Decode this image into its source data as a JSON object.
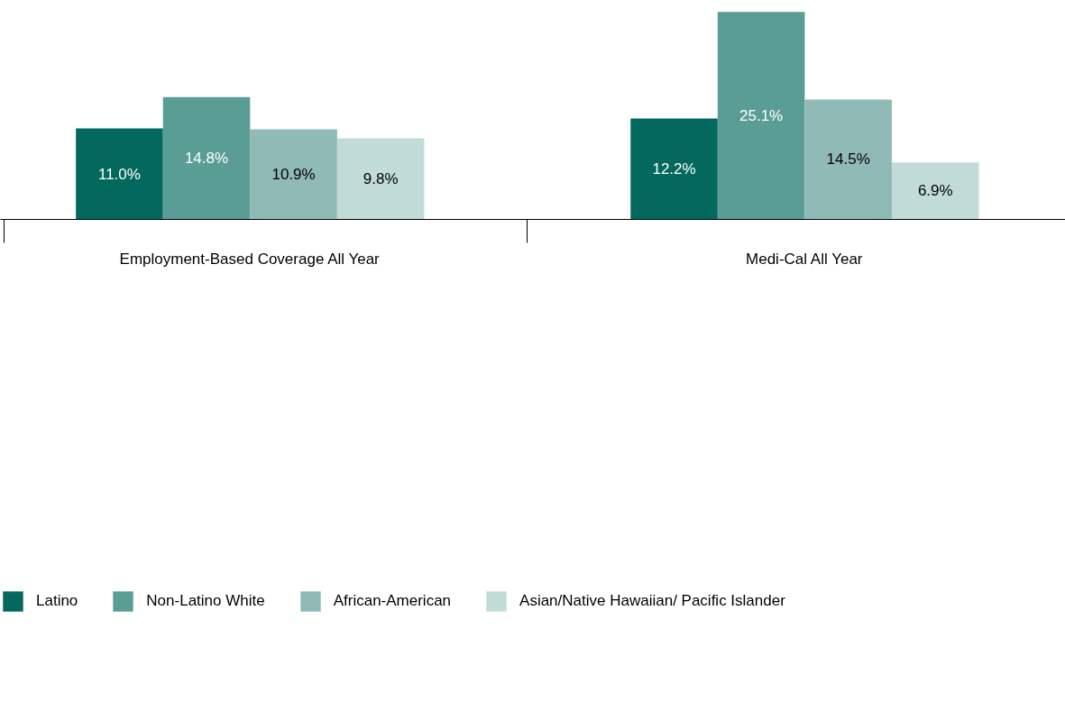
{
  "chart_data": {
    "type": "bar",
    "categories": [
      "Employment-Based Coverage All Year",
      "Medi-Cal All Year"
    ],
    "series": [
      {
        "name": "Latino",
        "color": "#03685d",
        "values": [
          11.0,
          12.2
        ],
        "value_labels": [
          "11.0%",
          "12.2%"
        ]
      },
      {
        "name": "Non-Latino White",
        "color": "#5a9d95",
        "values": [
          14.8,
          25.1
        ],
        "value_labels": [
          "14.8%",
          "25.1%"
        ]
      },
      {
        "name": "African-American",
        "color": "#8fbab6",
        "values": [
          10.9,
          14.5
        ],
        "value_labels": [
          "10.9%",
          "14.5%"
        ]
      },
      {
        "name": "Asian/Native Hawaiian/ Pacific Islander",
        "color": "#c1dcd8",
        "values": [
          9.8,
          6.9
        ],
        "value_labels": [
          "9.8%",
          "6.9%"
        ]
      }
    ],
    "legend": "bottom",
    "grid": false
  }
}
